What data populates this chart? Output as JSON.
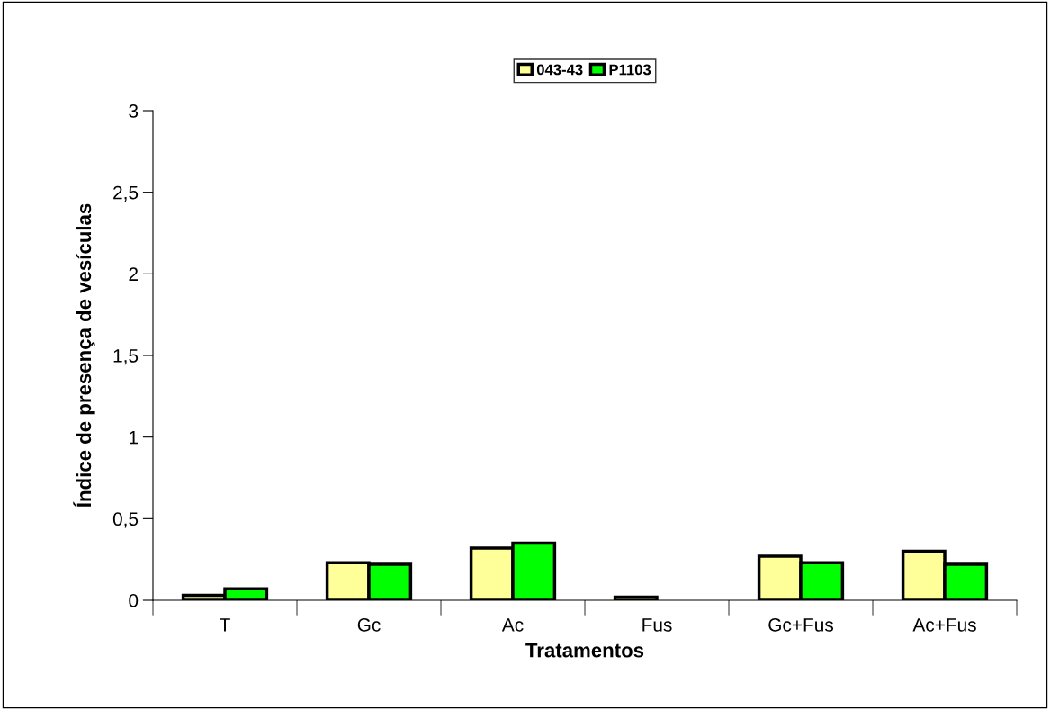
{
  "chart_data": {
    "type": "bar",
    "xlabel": "Tratamentos",
    "ylabel": "Índice de presença de vesículas",
    "categories": [
      "T",
      "Gc",
      "Ac",
      "Fus",
      "Gc+Fus",
      "Ac+Fus"
    ],
    "series": [
      {
        "name": "043-43",
        "color": "#ffff99",
        "values": [
          0.03,
          0.23,
          0.32,
          0.02,
          0.27,
          0.3
        ]
      },
      {
        "name": "P1103",
        "color": "#00ff00",
        "values": [
          0.07,
          0.22,
          0.35,
          null,
          0.23,
          0.22
        ]
      }
    ],
    "ylim": [
      0,
      3
    ],
    "yticks": [
      0,
      {
        "value": 0.5,
        "label": "0,5"
      },
      1,
      {
        "value": 1.5,
        "label": "1,5"
      },
      2,
      {
        "value": 2.5,
        "label": "2,5"
      },
      3
    ],
    "grid": false,
    "legend": "top"
  }
}
